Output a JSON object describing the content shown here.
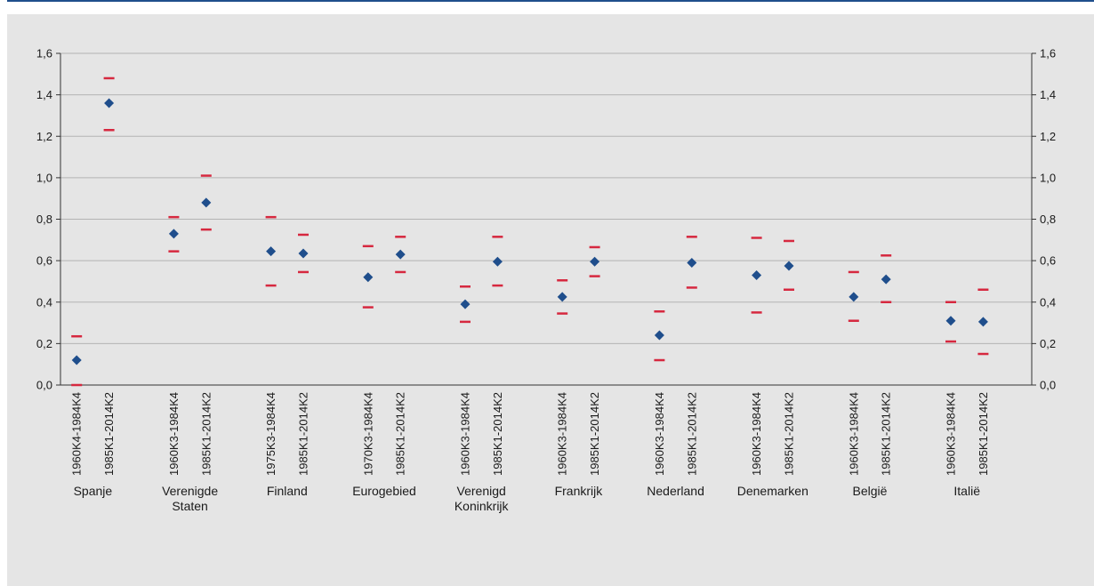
{
  "colors": {
    "point": "#1f4e8c",
    "bound": "#d6283f",
    "grid": "#b3b3b3",
    "axis": "#333333",
    "background": "#e5e5e5",
    "top_rule": "#1f4e8c"
  },
  "chart_data": {
    "type": "scatter",
    "title": "",
    "xlabel": "",
    "ylabel": "",
    "ylim": [
      0,
      1.6
    ],
    "y_ticks": [
      "0,0",
      "0,2",
      "0,4",
      "0,6",
      "0,8",
      "1,0",
      "1,2",
      "1,4",
      "1,6"
    ],
    "grid": true,
    "dual_y_axis": true,
    "groups": [
      {
        "country": [
          "Spanje"
        ],
        "periods": [
          {
            "label": "1960K4-1984K4",
            "point": 0.12,
            "upper": 0.235,
            "lower": 0.0
          },
          {
            "label": "1985K1-2014K2",
            "point": 1.36,
            "upper": 1.48,
            "lower": 1.23
          }
        ]
      },
      {
        "country": [
          "Verenigde",
          "Staten"
        ],
        "periods": [
          {
            "label": "1960K3-1984K4",
            "point": 0.73,
            "upper": 0.81,
            "lower": 0.645
          },
          {
            "label": "1985K1-2014K2",
            "point": 0.88,
            "upper": 1.01,
            "lower": 0.75
          }
        ]
      },
      {
        "country": [
          "Finland"
        ],
        "periods": [
          {
            "label": "1975K3-1984K4",
            "point": 0.645,
            "upper": 0.81,
            "lower": 0.48
          },
          {
            "label": "1985K1-2014K2",
            "point": 0.635,
            "upper": 0.725,
            "lower": 0.545
          }
        ]
      },
      {
        "country": [
          "Eurogebied"
        ],
        "periods": [
          {
            "label": "1970K3-1984K4",
            "point": 0.52,
            "upper": 0.67,
            "lower": 0.375
          },
          {
            "label": "1985K1-2014K2",
            "point": 0.63,
            "upper": 0.715,
            "lower": 0.545
          }
        ]
      },
      {
        "country": [
          "Verenigd",
          "Koninkrijk"
        ],
        "periods": [
          {
            "label": "1960K3-1984K4",
            "point": 0.39,
            "upper": 0.475,
            "lower": 0.305
          },
          {
            "label": "1985K1-2014K2",
            "point": 0.595,
            "upper": 0.715,
            "lower": 0.48
          }
        ]
      },
      {
        "country": [
          "Frankrijk"
        ],
        "periods": [
          {
            "label": "1960K3-1984K4",
            "point": 0.425,
            "upper": 0.505,
            "lower": 0.345
          },
          {
            "label": "1985K1-2014K2",
            "point": 0.595,
            "upper": 0.665,
            "lower": 0.525
          }
        ]
      },
      {
        "country": [
          "Nederland"
        ],
        "periods": [
          {
            "label": "1960K3-1984K4",
            "point": 0.24,
            "upper": 0.355,
            "lower": 0.12
          },
          {
            "label": "1985K1-2014K2",
            "point": 0.59,
            "upper": 0.715,
            "lower": 0.47
          }
        ]
      },
      {
        "country": [
          "Denemarken"
        ],
        "periods": [
          {
            "label": "1960K3-1984K4",
            "point": 0.53,
            "upper": 0.71,
            "lower": 0.35
          },
          {
            "label": "1985K1-2014K2",
            "point": 0.575,
            "upper": 0.695,
            "lower": 0.46
          }
        ]
      },
      {
        "country": [
          "België"
        ],
        "periods": [
          {
            "label": "1960K3-1984K4",
            "point": 0.425,
            "upper": 0.545,
            "lower": 0.31
          },
          {
            "label": "1985K1-2014K2",
            "point": 0.51,
            "upper": 0.625,
            "lower": 0.4
          }
        ]
      },
      {
        "country": [
          "Italië"
        ],
        "periods": [
          {
            "label": "1960K3-1984K4",
            "point": 0.31,
            "upper": 0.4,
            "lower": 0.21
          },
          {
            "label": "1985K1-2014K2",
            "point": 0.305,
            "upper": 0.46,
            "lower": 0.15
          }
        ]
      }
    ]
  }
}
